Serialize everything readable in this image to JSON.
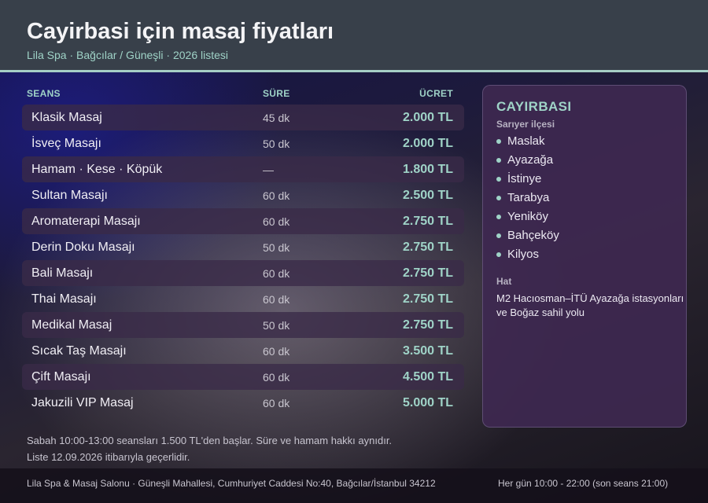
{
  "header": {
    "title": "Cayirbasi için masaj fiyatları",
    "subtitle": "Lila Spa · Bağcılar / Güneşli · 2026 listesi"
  },
  "table": {
    "col_seans": "SEANS",
    "col_sure": "SÜRE",
    "col_ucret": "ÜCRET",
    "rows": [
      {
        "name": "Klasik Masaj",
        "duration": "45 dk",
        "price": "2.000 TL"
      },
      {
        "name": "İsveç Masajı",
        "duration": "50 dk",
        "price": "2.000 TL"
      },
      {
        "name": "Hamam · Kese · Köpük",
        "duration": "—",
        "price": "1.800 TL"
      },
      {
        "name": "Sultan Masajı",
        "duration": "60 dk",
        "price": "2.500 TL"
      },
      {
        "name": "Aromaterapi Masajı",
        "duration": "60 dk",
        "price": "2.750 TL"
      },
      {
        "name": "Derin Doku Masajı",
        "duration": "50 dk",
        "price": "2.750 TL"
      },
      {
        "name": "Bali Masajı",
        "duration": "60 dk",
        "price": "2.750 TL"
      },
      {
        "name": "Thai Masajı",
        "duration": "60 dk",
        "price": "2.750 TL"
      },
      {
        "name": "Medikal Masaj",
        "duration": "50 dk",
        "price": "2.750 TL"
      },
      {
        "name": "Sıcak Taş Masajı",
        "duration": "60 dk",
        "price": "3.500 TL"
      },
      {
        "name": "Çift Masajı",
        "duration": "60 dk",
        "price": "4.500 TL"
      },
      {
        "name": "Jakuzili VIP Masaj",
        "duration": "60 dk",
        "price": "5.000 TL"
      }
    ]
  },
  "sidebar": {
    "title": "CAYIRBASI",
    "subtitle": "Sarıyer ilçesi",
    "places": [
      "Maslak",
      "Ayazağa",
      "İstinye",
      "Tarabya",
      "Yeniköy",
      "Bahçeköy",
      "Kilyos"
    ],
    "line_label": "Hat",
    "line_text": "M2 Hacıosman–İTÜ Ayazağa istasyonları ve Boğaz sahil yolu"
  },
  "notes": {
    "line1": "Sabah 10:00-13:00 seansları 1.500 TL'den başlar. Süre ve hamam hakkı aynıdır.",
    "line2": "Liste 12.09.2026 itibarıyla geçerlidir."
  },
  "footer": {
    "address": "Lila Spa & Masaj Salonu · Güneşli Mahallesi, Cumhuriyet Caddesi No:40, Bağcılar/İstanbul 34212",
    "hours": "Her gün 10:00 - 22:00 (son seans 21:00)"
  },
  "colors": {
    "accent": "#9fd3c7",
    "header_bg": "#38404a",
    "sidebar_bg": "#3e2850"
  }
}
